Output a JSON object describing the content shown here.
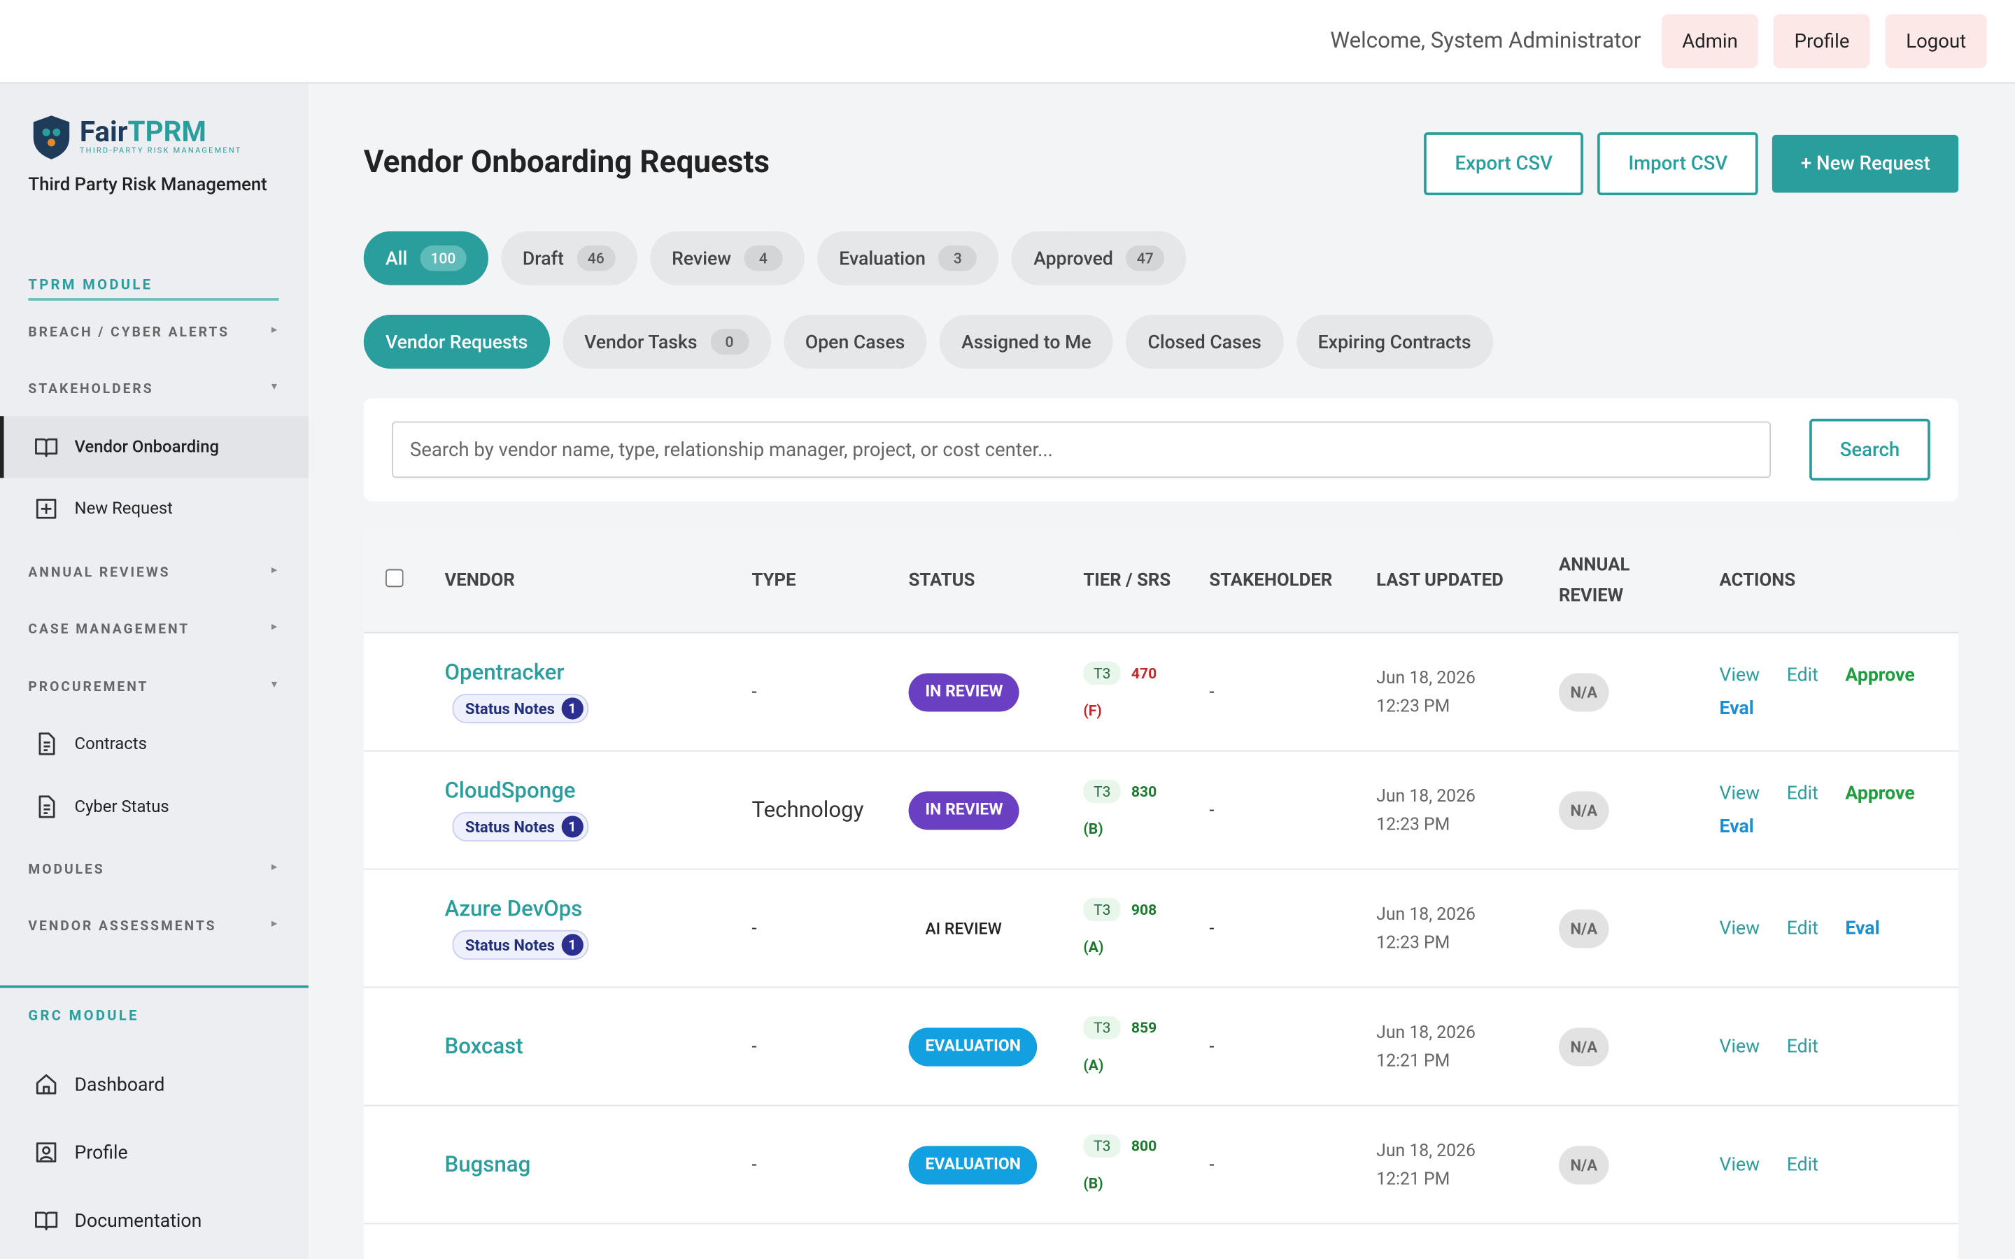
{
  "header": {
    "welcome": "Welcome, System Administrator",
    "buttons": [
      "Admin",
      "Profile",
      "Logout"
    ]
  },
  "sidebar": {
    "logo": [
      "Fair",
      "TPRM"
    ],
    "logo_tagline": "THIRD-PARTY RISK MANAGEMENT",
    "subtitle": "Third Party Risk Management",
    "items": [
      {
        "label": "TPRM MODULE",
        "kind": "module"
      },
      {
        "label": "BREACH / CYBER ALERTS",
        "kind": "group",
        "expanded": false
      },
      {
        "label": "STAKEHOLDERS",
        "kind": "group",
        "expanded": true
      },
      {
        "label": "Vendor Onboarding",
        "kind": "link",
        "icon": "book",
        "active": true
      },
      {
        "label": "New Request",
        "kind": "link",
        "icon": "plus"
      },
      {
        "label": "ANNUAL REVIEWS",
        "kind": "group",
        "expanded": false
      },
      {
        "label": "CASE MANAGEMENT",
        "kind": "group",
        "expanded": false
      },
      {
        "label": "PROCUREMENT",
        "kind": "group",
        "expanded": true
      },
      {
        "label": "Contracts",
        "kind": "link",
        "icon": "doc"
      },
      {
        "label": "Cyber Status",
        "kind": "link",
        "icon": "doc"
      },
      {
        "label": "MODULES",
        "kind": "group",
        "expanded": false
      },
      {
        "label": "VENDOR ASSESSMENTS",
        "kind": "group",
        "expanded": false
      },
      {
        "label": "GRC MODULE",
        "kind": "module"
      },
      {
        "label": "Dashboard",
        "kind": "link",
        "icon": "home"
      },
      {
        "label": "Profile",
        "kind": "link",
        "icon": "user"
      },
      {
        "label": "Documentation",
        "kind": "link",
        "icon": "book"
      }
    ]
  },
  "page": {
    "title": "Vendor Onboarding Requests",
    "actions": [
      "Export CSV",
      "Import CSV",
      "+ New Request"
    ],
    "status_tabs": [
      {
        "label": "All",
        "count": 100,
        "active": true
      },
      {
        "label": "Draft",
        "count": 46
      },
      {
        "label": "Review",
        "count": 4
      },
      {
        "label": "Evaluation",
        "count": 3
      },
      {
        "label": "Approved",
        "count": 47
      }
    ],
    "view_tabs": [
      {
        "label": "Vendor Requests",
        "active": true
      },
      {
        "label": "Vendor Tasks",
        "count": 0
      },
      {
        "label": "Open Cases"
      },
      {
        "label": "Assigned to Me"
      },
      {
        "label": "Closed Cases"
      },
      {
        "label": "Expiring Contracts"
      }
    ],
    "search_placeholder": "Search by vendor name, type, relationship manager, project, or cost center...",
    "search_button": "Search",
    "table": {
      "columns": [
        "VENDOR",
        "TYPE",
        "STATUS",
        "TIER / SRS",
        "STAKEHOLDER",
        "LAST UPDATED",
        "ANNUAL REVIEW",
        "ACTIONS"
      ],
      "rows": [
        {
          "vendor": "Opentracker",
          "notes": {
            "label": "Status Notes",
            "count": 1
          },
          "type": "-",
          "status": "IN REVIEW",
          "status_color": "#6a3fc1",
          "tier": "T3",
          "srs": 470,
          "grade": "(F)",
          "srs_color": "#c62828",
          "stakeholder": "-",
          "date": "Jun 18, 2026",
          "time": "12:23 PM",
          "annual": "N/A",
          "actions": [
            {
              "label": "View",
              "color": "#2a9d9d"
            },
            {
              "label": "Edit",
              "color": "#2a9d9d"
            },
            {
              "label": "Approve",
              "color": "#1e9e3e"
            },
            {
              "label": "Eval",
              "color": "#1a8fd6"
            }
          ]
        },
        {
          "vendor": "CloudSponge",
          "notes": {
            "label": "Status Notes",
            "count": 1
          },
          "type": "Technology",
          "status": "IN REVIEW",
          "status_color": "#6a3fc1",
          "tier": "T3",
          "srs": 830,
          "grade": "(B)",
          "srs_color": "#1b7a2e",
          "stakeholder": "-",
          "date": "Jun 18, 2026",
          "time": "12:23 PM",
          "annual": "N/A",
          "actions": [
            {
              "label": "View",
              "color": "#2a9d9d"
            },
            {
              "label": "Edit",
              "color": "#2a9d9d"
            },
            {
              "label": "Approve",
              "color": "#1e9e3e"
            },
            {
              "label": "Eval",
              "color": "#1a8fd6"
            }
          ]
        },
        {
          "vendor": "Azure DevOps",
          "notes": {
            "label": "Status Notes",
            "count": 1
          },
          "type": "-",
          "status": "AI REVIEW",
          "tier": "T3",
          "srs": 908,
          "grade": "(A)",
          "srs_color": "#1b7a2e",
          "stakeholder": "-",
          "date": "Jun 18, 2026",
          "time": "12:23 PM",
          "annual": "N/A",
          "actions": [
            {
              "label": "View",
              "color": "#2a9d9d"
            },
            {
              "label": "Edit",
              "color": "#2a9d9d"
            },
            {
              "label": "Eval",
              "color": "#1a8fd6"
            }
          ]
        },
        {
          "vendor": "Boxcast",
          "type": "-",
          "status": "EVALUATION",
          "status_color": "#12a0e0",
          "tier": "T3",
          "srs": 859,
          "grade": "(A)",
          "srs_color": "#1b7a2e",
          "stakeholder": "-",
          "date": "Jun 18, 2026",
          "time": "12:21 PM",
          "annual": "N/A",
          "actions": [
            {
              "label": "View",
              "color": "#2a9d9d"
            },
            {
              "label": "Edit",
              "color": "#2a9d9d"
            }
          ]
        },
        {
          "vendor": "Bugsnag",
          "type": "-",
          "status": "EVALUATION",
          "status_color": "#12a0e0",
          "tier": "T3",
          "srs": 800,
          "grade": "(B)",
          "srs_color": "#1b7a2e",
          "stakeholder": "-",
          "date": "Jun 18, 2026",
          "time": "12:21 PM",
          "annual": "N/A",
          "actions": [
            {
              "label": "View",
              "color": "#2a9d9d"
            },
            {
              "label": "Edit",
              "color": "#2a9d9d"
            }
          ]
        }
      ]
    }
  }
}
